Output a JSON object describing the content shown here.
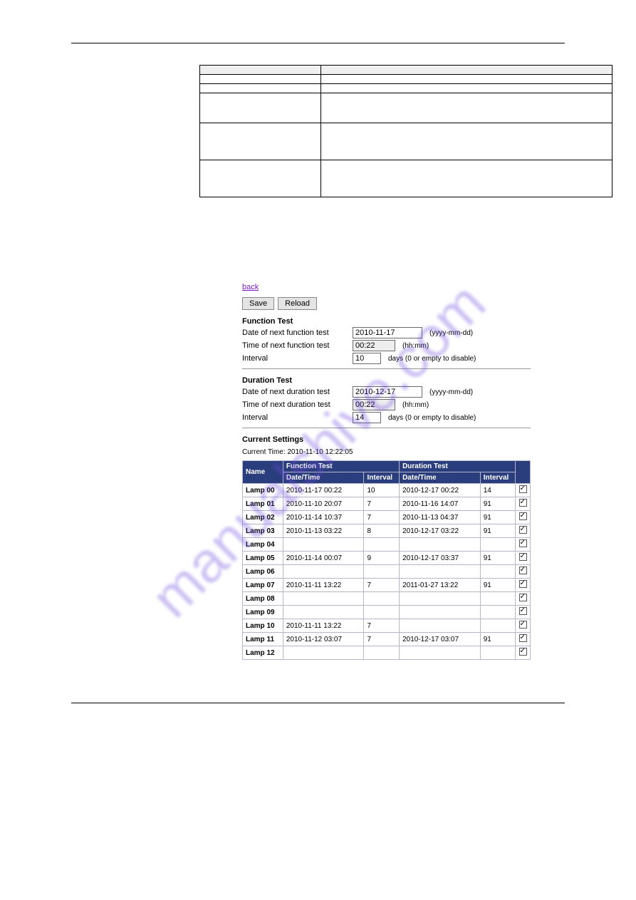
{
  "defTable": {
    "headers": [
      "",
      ""
    ],
    "rows": [
      {
        "key": "",
        "val": "",
        "cls": ""
      },
      {
        "key": "",
        "val": "",
        "cls": ""
      },
      {
        "key": "",
        "val": "",
        "cls": "tall"
      },
      {
        "key": "",
        "val": "",
        "cls": "taller"
      },
      {
        "key": "",
        "val": "",
        "cls": "taller"
      }
    ]
  },
  "backLink": "back",
  "buttons": {
    "save": "Save",
    "reload": "Reload"
  },
  "functionTest": {
    "title": "Function Test",
    "dateLabel": "Date of next function test",
    "date": "2010-11-17",
    "dateHint": "(yyyy-mm-dd)",
    "timeLabel": "Time of next function test",
    "time": "00:22",
    "timeHint": "(hh:mm)",
    "intervalLabel": "Interval",
    "interval": "10",
    "intervalHint": "days (0 or empty to disable)"
  },
  "durationTest": {
    "title": "Duration Test",
    "dateLabel": "Date of next duration test",
    "date": "2010-12-17",
    "dateHint": "(yyyy-mm-dd)",
    "timeLabel": "Time of next duration test",
    "time": "00:22",
    "timeHint": "(hh:mm)",
    "intervalLabel": "Interval",
    "interval": "14",
    "intervalHint": "days (0 or empty to disable)"
  },
  "currentSettings": {
    "title": "Current Settings",
    "currentTime": "Current Time: 2010-11-10 12:22:05",
    "head": {
      "name": "Name",
      "ft": "Function Test",
      "dt": "Duration Test",
      "dtCol": "Date/Time",
      "ivCol": "Interval"
    },
    "rows": [
      {
        "name": "Lamp 00",
        "ftDT": "2010-11-17 00:22",
        "ftIV": "10",
        "dtDT": "2010-12-17 00:22",
        "dtIV": "14"
      },
      {
        "name": "Lamp 01",
        "ftDT": "2010-11-10 20:07",
        "ftIV": "7",
        "dtDT": "2010-11-16 14:07",
        "dtIV": "91"
      },
      {
        "name": "Lamp 02",
        "ftDT": "2010-11-14 10:37",
        "ftIV": "7",
        "dtDT": "2010-11-13 04:37",
        "dtIV": "91"
      },
      {
        "name": "Lamp 03",
        "ftDT": "2010-11-13 03:22",
        "ftIV": "8",
        "dtDT": "2010-12-17 03:22",
        "dtIV": "91"
      },
      {
        "name": "Lamp 04",
        "ftDT": "",
        "ftIV": "",
        "dtDT": "",
        "dtIV": ""
      },
      {
        "name": "Lamp 05",
        "ftDT": "2010-11-14 00:07",
        "ftIV": "9",
        "dtDT": "2010-12-17 03:37",
        "dtIV": "91"
      },
      {
        "name": "Lamp 06",
        "ftDT": "",
        "ftIV": "",
        "dtDT": "",
        "dtIV": ""
      },
      {
        "name": "Lamp 07",
        "ftDT": "2010-11-11 13:22",
        "ftIV": "7",
        "dtDT": "2011-01-27 13:22",
        "dtIV": "91"
      },
      {
        "name": "Lamp 08",
        "ftDT": "",
        "ftIV": "",
        "dtDT": "",
        "dtIV": ""
      },
      {
        "name": "Lamp 09",
        "ftDT": "",
        "ftIV": "",
        "dtDT": "",
        "dtIV": ""
      },
      {
        "name": "Lamp 10",
        "ftDT": "2010-11-11 13:22",
        "ftIV": "7",
        "dtDT": "",
        "dtIV": ""
      },
      {
        "name": "Lamp 11",
        "ftDT": "2010-11-12 03:07",
        "ftIV": "7",
        "dtDT": "2010-12-17 03:07",
        "dtIV": "91"
      },
      {
        "name": "Lamp 12",
        "ftDT": "",
        "ftIV": "",
        "dtDT": "",
        "dtIV": ""
      }
    ]
  },
  "watermark": "manualshive.com",
  "colors": {
    "tableHeaderBg": "#2a3d7c",
    "tableHeaderFg": "#ffffff",
    "cellBorder": "#b5b5cc",
    "defHeaderBg": "#efefef",
    "watermark": "rgba(110,75,220,0.35)"
  }
}
